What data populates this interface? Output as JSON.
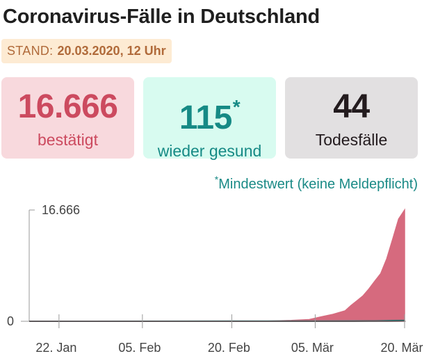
{
  "title": "Coronavirus-Fälle in Deutschland",
  "stand": {
    "label": "STAND:",
    "value": "20.03.2020, 12 Uhr"
  },
  "cards": {
    "confirmed": {
      "value": "16.666",
      "label": "bestätigt",
      "color": "#cc4a5f",
      "bg": "#f8d9dd"
    },
    "recovered": {
      "value": "115",
      "marker": "*",
      "label": "wieder gesund",
      "color": "#168a85",
      "bg": "#d8fbf0"
    },
    "deaths": {
      "value": "44",
      "label": "Todesfälle",
      "color": "#231b1e",
      "bg": "#e2e0e1"
    }
  },
  "footnote": {
    "marker": "*",
    "text": "Mindestwert (keine Meldepflicht)"
  },
  "chart_data": {
    "type": "area",
    "title": "",
    "xlabel": "",
    "ylabel": "",
    "xlim": [
      "2020-01-17",
      "2020-03-20"
    ],
    "ylim": [
      0,
      16666
    ],
    "yticks": [
      {
        "label": "0",
        "value": 0
      },
      {
        "label": "16.666",
        "value": 16666
      }
    ],
    "xticks": [
      {
        "label": "22. Jan",
        "date": "2020-01-22"
      },
      {
        "label": "05. Feb",
        "date": "2020-02-05"
      },
      {
        "label": "20. Feb",
        "date": "2020-02-20"
      },
      {
        "label": "05. Mär",
        "date": "2020-03-05"
      },
      {
        "label": "20. Mär",
        "date": "2020-03-20"
      }
    ],
    "grid": false,
    "series": [
      {
        "name": "bestätigt",
        "color": "#d66a7e",
        "points": [
          [
            "2020-01-17",
            0
          ],
          [
            "2020-01-27",
            1
          ],
          [
            "2020-02-03",
            12
          ],
          [
            "2020-02-10",
            14
          ],
          [
            "2020-02-20",
            16
          ],
          [
            "2020-02-26",
            27
          ],
          [
            "2020-03-01",
            130
          ],
          [
            "2020-03-04",
            262
          ],
          [
            "2020-03-06",
            670
          ],
          [
            "2020-03-08",
            1040
          ],
          [
            "2020-03-10",
            1565
          ],
          [
            "2020-03-11",
            2369
          ],
          [
            "2020-03-12",
            3062
          ],
          [
            "2020-03-13",
            3795
          ],
          [
            "2020-03-14",
            4838
          ],
          [
            "2020-03-15",
            6012
          ],
          [
            "2020-03-16",
            7156
          ],
          [
            "2020-03-17",
            9360
          ],
          [
            "2020-03-18",
            12327
          ],
          [
            "2020-03-19",
            15320
          ],
          [
            "2020-03-20",
            16666
          ]
        ]
      },
      {
        "name": "wieder gesund",
        "color": "#168a85",
        "points": [
          [
            "2020-01-17",
            0
          ],
          [
            "2020-02-20",
            16
          ],
          [
            "2020-03-05",
            16
          ],
          [
            "2020-03-12",
            46
          ],
          [
            "2020-03-15",
            46
          ],
          [
            "2020-03-18",
            105
          ],
          [
            "2020-03-20",
            115
          ]
        ]
      },
      {
        "name": "Todesfälle",
        "color": "#231b1e",
        "points": [
          [
            "2020-01-17",
            0
          ],
          [
            "2020-03-08",
            0
          ],
          [
            "2020-03-10",
            2
          ],
          [
            "2020-03-14",
            9
          ],
          [
            "2020-03-17",
            13
          ],
          [
            "2020-03-19",
            31
          ],
          [
            "2020-03-20",
            44
          ]
        ]
      }
    ]
  }
}
